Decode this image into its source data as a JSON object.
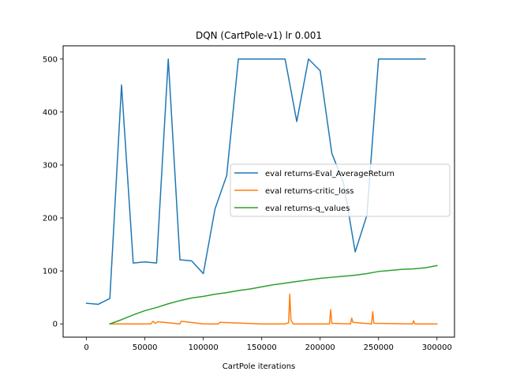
{
  "chart_data": {
    "type": "line",
    "title": "DQN (CartPole-v1) lr 0.001",
    "xlabel": "CartPole iterations",
    "ylabel": "",
    "xlim": [
      -20000,
      315000
    ],
    "ylim": [
      -25,
      525
    ],
    "xticks": [
      0,
      50000,
      100000,
      150000,
      200000,
      250000,
      300000
    ],
    "yticks": [
      0,
      100,
      200,
      300,
      400,
      500
    ],
    "grid": false,
    "legend_position": "center-right",
    "series": [
      {
        "name": "eval returns-Eval_AverageReturn",
        "color": "#1f77b4",
        "x": [
          0,
          10000,
          20000,
          30000,
          40000,
          50000,
          60000,
          70000,
          80000,
          90000,
          100000,
          110000,
          120000,
          130000,
          140000,
          150000,
          160000,
          170000,
          180000,
          190000,
          200000,
          210000,
          220000,
          230000,
          240000,
          250000,
          260000,
          270000,
          280000,
          290000
        ],
        "y": [
          39,
          37,
          48,
          451,
          115,
          117,
          115,
          500,
          121,
          119,
          95,
          217,
          280,
          500,
          500,
          500,
          500,
          500,
          382,
          500,
          478,
          322,
          266,
          136,
          205,
          500,
          500,
          500,
          500,
          500
        ]
      },
      {
        "name": "eval returns-critic_loss",
        "color": "#ff7f0e",
        "x": [
          20000,
          50000,
          55000,
          57000,
          59000,
          61000,
          80000,
          81000,
          100000,
          113000,
          114000,
          150000,
          170000,
          173000,
          174000,
          175000,
          177000,
          200000,
          208000,
          209000,
          210000,
          226000,
          227000,
          228000,
          244000,
          245000,
          246000,
          279000,
          280000,
          281000,
          300000
        ],
        "y": [
          0,
          0,
          0,
          5,
          1,
          4,
          0,
          5,
          0,
          0,
          3,
          0,
          0,
          2,
          56,
          7,
          0,
          0,
          0,
          27,
          1,
          0,
          11,
          3,
          0,
          23,
          1,
          0,
          6,
          0,
          0
        ]
      },
      {
        "name": "eval returns-q_values",
        "color": "#2ca02c",
        "x": [
          20000,
          30000,
          40000,
          50000,
          60000,
          70000,
          80000,
          90000,
          100000,
          110000,
          120000,
          130000,
          140000,
          150000,
          160000,
          170000,
          180000,
          190000,
          200000,
          210000,
          220000,
          230000,
          240000,
          250000,
          260000,
          270000,
          280000,
          290000,
          300000
        ],
        "y": [
          0,
          8,
          17,
          25,
          31,
          38,
          44,
          49,
          52,
          56,
          59,
          63,
          66,
          70,
          74,
          77,
          80,
          83,
          86,
          88,
          90,
          92,
          95,
          99,
          101,
          103,
          104,
          106,
          110
        ]
      }
    ]
  }
}
